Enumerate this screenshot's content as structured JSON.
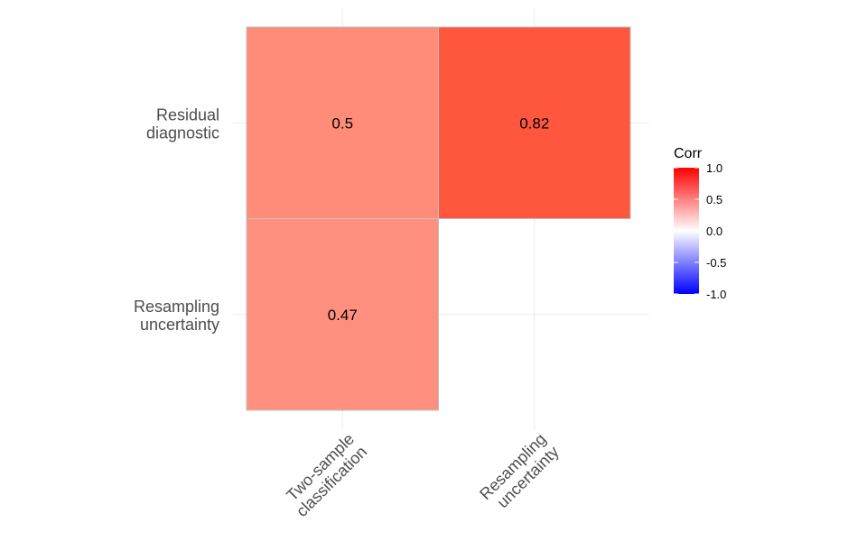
{
  "chart_data": {
    "type": "heatmap",
    "title": "",
    "xlabel": "",
    "ylabel": "",
    "x_categories": [
      [
        "Two-sample",
        "classification"
      ],
      [
        "Resampling",
        "uncertainty"
      ]
    ],
    "y_categories": [
      [
        "Residual",
        "diagnostic"
      ],
      [
        "Resampling",
        "uncertainty"
      ]
    ],
    "cells": [
      {
        "x": 0,
        "y": 0,
        "value": 0.5,
        "label": "0.5"
      },
      {
        "x": 1,
        "y": 0,
        "value": 0.82,
        "label": "0.82"
      },
      {
        "x": 0,
        "y": 1,
        "value": 0.47,
        "label": "0.47"
      }
    ],
    "legend": {
      "title": "Corr",
      "position": "right",
      "range": [
        -1.0,
        1.0
      ],
      "ticks": [
        {
          "value": 1.0,
          "label": "1.0"
        },
        {
          "value": 0.5,
          "label": "0.5"
        },
        {
          "value": 0.0,
          "label": "0.0"
        },
        {
          "value": -0.5,
          "label": "-0.5"
        },
        {
          "value": -1.0,
          "label": "-1.0"
        }
      ],
      "colors": {
        "low": "#0000ff",
        "mid": "#ffffff",
        "high": "#ff0000"
      }
    },
    "grid": true,
    "grid_color": "#ebebeb",
    "tile_border_color": "#bfbfbf"
  }
}
